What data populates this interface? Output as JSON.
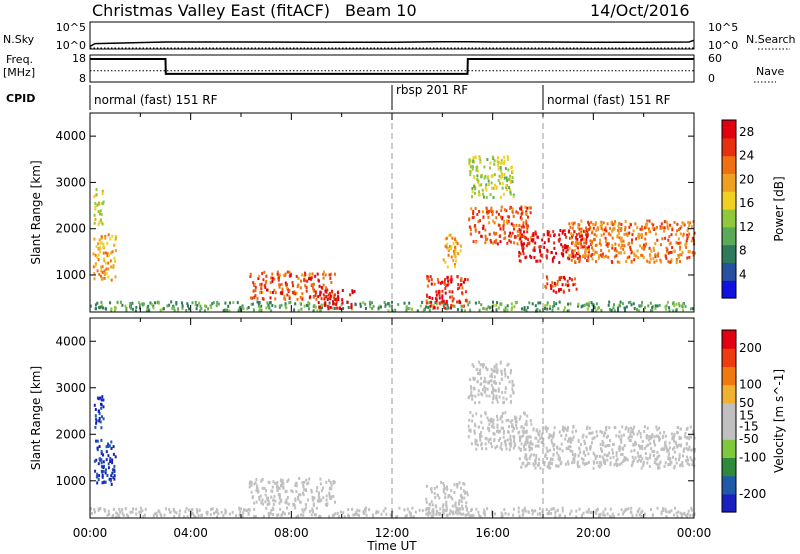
{
  "header": {
    "title": "Christmas Valley East (fitACF)",
    "beam": "Beam 10",
    "date": "14/Oct/2016"
  },
  "strip_labels": {
    "nsky": "N.Sky",
    "nsearch": "N.Search",
    "freq_line1": "Freq.",
    "freq_line2": "[MHz]",
    "nave": "Nave",
    "cpid": "CPID"
  },
  "strip_ticks": {
    "noise_left": [
      "10^5",
      "10^0"
    ],
    "noise_right": [
      "10^5",
      "10^0"
    ],
    "freq_left": [
      "18",
      "8"
    ],
    "freq_right": [
      "60",
      "0"
    ]
  },
  "cpid_segments": [
    {
      "label": "normal (fast) 151 RF",
      "start_hour": 0
    },
    {
      "label": "rbsp 201 RF",
      "start_hour": 12
    },
    {
      "label": "normal (fast) 151 RF",
      "start_hour": 18
    }
  ],
  "time_axis": {
    "label": "Time UT",
    "ticks": [
      "00:00",
      "04:00",
      "08:00",
      "12:00",
      "16:00",
      "20:00",
      "00:00"
    ]
  },
  "colors": {
    "power_scale": [
      "#1010e0",
      "#2850a0",
      "#2e7a5a",
      "#5aaa5a",
      "#90c83c",
      "#f0d020",
      "#f0a020",
      "#f07010",
      "#e83010",
      "#e00010"
    ],
    "velocity_scale": [
      "#e00010",
      "#f03a10",
      "#f07a10",
      "#f0b030",
      "#c0c0c0",
      "#c0c0c0",
      "#80c840",
      "#2e8a3a",
      "#1f5aa8",
      "#1a20c0"
    ],
    "ground_scatter": "#c0c0c0"
  },
  "chart_data": [
    {
      "type": "line",
      "name": "noise-panel",
      "title": "Christmas Valley East (fitACF)",
      "ylabel": "N.Sky",
      "y_scale": "log",
      "ylim": [
        1,
        100000
      ],
      "x_hours": [
        0,
        0.2,
        3,
        6,
        9,
        12,
        14,
        15,
        16,
        18,
        20,
        22,
        23.8,
        24
      ],
      "series": [
        {
          "name": "N.Sky",
          "values": [
            3,
            10,
            20,
            20,
            18,
            18,
            22,
            22,
            20,
            20,
            18,
            18,
            20,
            40
          ]
        },
        {
          "name": "N.Search",
          "values": [
            1.5,
            1.5,
            1.5,
            1.5,
            1.5,
            1.5,
            1.5,
            1.5,
            1.5,
            1.5,
            1.5,
            1.5,
            1.5,
            1.5
          ]
        }
      ]
    },
    {
      "type": "line",
      "name": "frequency-panel",
      "ylabel": "Freq. [MHz]",
      "ylim": [
        8,
        18
      ],
      "y2label": "Nave",
      "y2lim": [
        0,
        60
      ],
      "x_hours": [
        0,
        3,
        3.01,
        15,
        15.01,
        24
      ],
      "series": [
        {
          "name": "Freq.",
          "values": [
            16.5,
            16.5,
            11,
            11,
            16.5,
            16.5
          ]
        },
        {
          "name": "Nave",
          "values": [
            25,
            25,
            25,
            25,
            25,
            25
          ]
        }
      ]
    },
    {
      "type": "heatmap",
      "name": "power-panel",
      "ylabel": "Slant Range [km]",
      "xlabel": "",
      "x_range_hours": [
        0,
        24
      ],
      "ylim": [
        200,
        4500
      ],
      "y_ticks": [
        1000,
        2000,
        3000,
        4000
      ],
      "colorbar": {
        "label": "Power [dB]",
        "ticks": [
          4,
          8,
          12,
          16,
          20,
          24,
          28
        ],
        "range": [
          0,
          30
        ]
      },
      "regions": [
        {
          "t_start": 0.1,
          "t_end": 0.5,
          "r_low": 2100,
          "r_high": 2900,
          "value": 16
        },
        {
          "t_start": 0.1,
          "t_end": 1.0,
          "r_low": 900,
          "r_high": 1900,
          "value": 20
        },
        {
          "t_start": 0.0,
          "t_end": 24.0,
          "r_low": 250,
          "r_high": 450,
          "value": 10
        },
        {
          "t_start": 6.3,
          "t_end": 9.7,
          "r_low": 500,
          "r_high": 1100,
          "value": 24
        },
        {
          "t_start": 9.0,
          "t_end": 10.5,
          "r_low": 300,
          "r_high": 700,
          "value": 28
        },
        {
          "t_start": 13.3,
          "t_end": 15.0,
          "r_low": 300,
          "r_high": 1000,
          "value": 26
        },
        {
          "t_start": 14.0,
          "t_end": 14.7,
          "r_low": 1200,
          "r_high": 1900,
          "value": 20
        },
        {
          "t_start": 15.0,
          "t_end": 16.8,
          "r_low": 2700,
          "r_high": 3600,
          "value": 14
        },
        {
          "t_start": 15.0,
          "t_end": 17.5,
          "r_low": 1700,
          "r_high": 2500,
          "value": 24
        },
        {
          "t_start": 17.0,
          "t_end": 19.8,
          "r_low": 1300,
          "r_high": 2000,
          "value": 28
        },
        {
          "t_start": 18.0,
          "t_end": 19.3,
          "r_low": 650,
          "r_high": 1000,
          "value": 26
        },
        {
          "t_start": 19.0,
          "t_end": 24.0,
          "r_low": 1300,
          "r_high": 2200,
          "value": 22
        }
      ]
    },
    {
      "type": "heatmap",
      "name": "velocity-panel",
      "ylabel": "Slant Range [km]",
      "xlabel": "Time UT",
      "x_range_hours": [
        0,
        24
      ],
      "ylim": [
        200,
        4500
      ],
      "y_ticks": [
        1000,
        2000,
        3000,
        4000
      ],
      "colorbar": {
        "label": "Velocity [m s^-1]",
        "ticks": [
          200,
          100,
          50,
          15,
          -15,
          -50,
          -100,
          -200
        ],
        "range": [
          -250,
          250
        ]
      },
      "regions": [
        {
          "t_start": 0.1,
          "t_end": 0.5,
          "r_low": 2100,
          "r_high": 2900,
          "value": 200
        },
        {
          "t_start": 0.1,
          "t_end": 1.0,
          "r_low": 900,
          "r_high": 1900,
          "value": 200
        },
        {
          "t_start": 0.0,
          "t_end": 24.0,
          "r_low": 250,
          "r_high": 450,
          "value": 30
        },
        {
          "t_start": 6.3,
          "t_end": 9.7,
          "r_low": 500,
          "r_high": 1100,
          "value": 0
        },
        {
          "t_start": 13.3,
          "t_end": 15.0,
          "r_low": 300,
          "r_high": 1000,
          "value": 0
        },
        {
          "t_start": 15.0,
          "t_end": 16.8,
          "r_low": 2700,
          "r_high": 3600,
          "value": 0
        },
        {
          "t_start": 15.0,
          "t_end": 17.5,
          "r_low": 1700,
          "r_high": 2500,
          "value": 0
        },
        {
          "t_start": 17.0,
          "t_end": 24.0,
          "r_low": 1300,
          "r_high": 2200,
          "value": 0
        }
      ]
    }
  ]
}
